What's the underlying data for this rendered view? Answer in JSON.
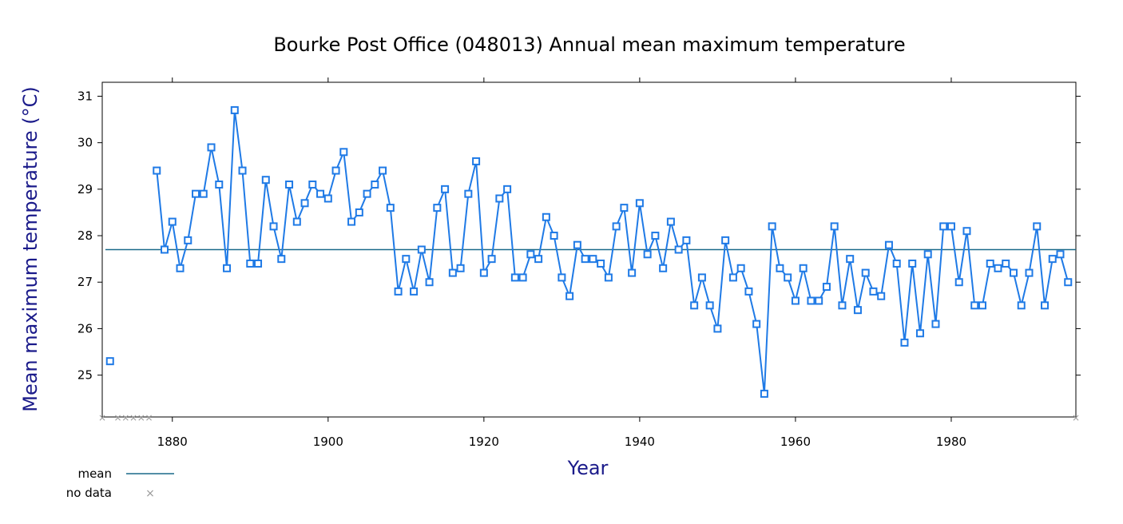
{
  "chart_data": {
    "type": "line",
    "title": "Bourke Post Office (048013) Annual mean maximum temperature",
    "xlabel": "Year",
    "ylabel": "Mean maximum temperature (°C)",
    "xlim": [
      1871,
      1996
    ],
    "ylim": [
      24.1,
      31.3
    ],
    "x_ticks": [
      1880,
      1900,
      1920,
      1940,
      1960,
      1980
    ],
    "y_ticks": [
      25,
      26,
      27,
      28,
      29,
      30,
      31
    ],
    "mean": 27.7,
    "series": [
      {
        "name": "",
        "color": "#1f7ae6",
        "x": [
          1872,
          1878,
          1879,
          1880,
          1881,
          1882,
          1883,
          1884,
          1885,
          1886,
          1887,
          1888,
          1889,
          1890,
          1891,
          1892,
          1893,
          1894,
          1895,
          1896,
          1897,
          1898,
          1899,
          1900,
          1901,
          1902,
          1903,
          1904,
          1905,
          1906,
          1907,
          1908,
          1909,
          1910,
          1911,
          1912,
          1913,
          1914,
          1915,
          1916,
          1917,
          1918,
          1919,
          1920,
          1921,
          1922,
          1923,
          1924,
          1925,
          1926,
          1927,
          1928,
          1929,
          1930,
          1931,
          1932,
          1933,
          1934,
          1935,
          1936,
          1937,
          1938,
          1939,
          1940,
          1941,
          1942,
          1943,
          1944,
          1945,
          1946,
          1947,
          1948,
          1949,
          1950,
          1951,
          1952,
          1953,
          1954,
          1955,
          1956,
          1957,
          1958,
          1959,
          1960,
          1961,
          1962,
          1963,
          1964,
          1965,
          1966,
          1967,
          1968,
          1969,
          1970,
          1971,
          1972,
          1973,
          1974,
          1975,
          1976,
          1977,
          1978,
          1979,
          1980,
          1981,
          1982,
          1983,
          1984,
          1985,
          1986,
          1987,
          1988,
          1989,
          1990,
          1991,
          1992,
          1993,
          1994,
          1995
        ],
        "y": [
          25.3,
          29.4,
          27.7,
          28.3,
          27.3,
          27.9,
          28.9,
          28.9,
          29.9,
          29.1,
          27.3,
          30.7,
          29.4,
          27.4,
          27.4,
          29.2,
          28.2,
          27.5,
          29.1,
          28.3,
          28.7,
          29.1,
          28.9,
          28.8,
          29.4,
          29.8,
          28.3,
          28.5,
          28.9,
          29.1,
          29.4,
          28.6,
          26.8,
          27.5,
          26.8,
          27.7,
          27.0,
          28.6,
          29.0,
          27.2,
          27.3,
          28.9,
          29.6,
          27.2,
          27.5,
          28.8,
          29.0,
          27.1,
          27.1,
          27.6,
          27.5,
          28.4,
          28.0,
          27.1,
          26.7,
          27.8,
          27.5,
          27.5,
          27.4,
          27.1,
          28.2,
          28.6,
          27.2,
          28.7,
          27.6,
          28.0,
          27.3,
          28.3,
          27.7,
          27.9,
          26.5,
          27.1,
          26.5,
          26.0,
          27.9,
          27.1,
          27.3,
          26.8,
          26.1,
          24.6,
          28.2,
          27.3,
          27.1,
          26.6,
          27.3,
          26.6,
          26.6,
          26.9,
          28.2,
          26.5,
          27.5,
          26.4,
          27.2,
          26.8,
          26.7,
          27.8,
          27.4,
          25.7,
          27.4,
          25.9,
          27.6,
          26.1,
          28.2,
          28.2,
          27.0,
          28.1,
          26.5,
          26.5,
          27.4,
          27.3,
          27.4,
          27.2,
          26.5,
          27.2,
          28.2,
          26.5,
          27.5,
          27.6,
          27.0
        ]
      }
    ],
    "no_data_years": [
      1871,
      1873,
      1874,
      1875,
      1876,
      1877,
      1996
    ],
    "legend": {
      "position": "bottom-left",
      "items": [
        {
          "label": "mean",
          "color": "#1a6a8a"
        },
        {
          "label": "no data",
          "color": "#999999"
        }
      ]
    }
  }
}
